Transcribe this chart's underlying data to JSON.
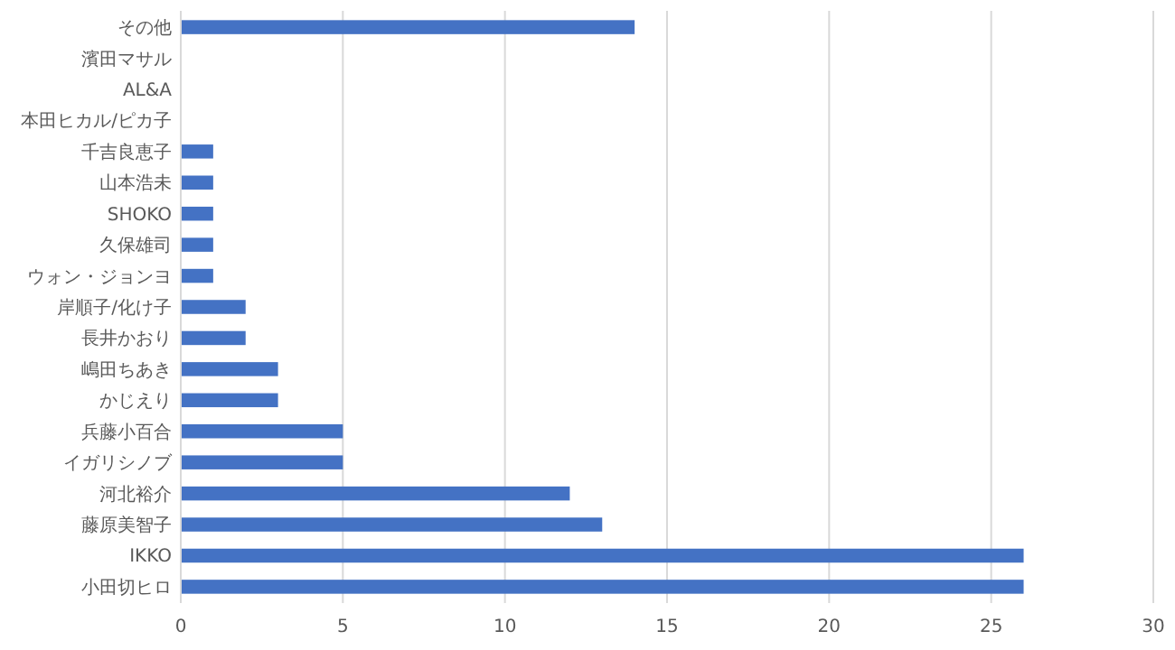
{
  "chart_data": {
    "type": "bar",
    "orientation": "horizontal",
    "categories": [
      "その他",
      "濱田マサル",
      "AL&A",
      "本田ヒカル/ピカ子",
      "千吉良恵子",
      "山本浩未",
      "SHOKO",
      "久保雄司",
      "ウォン・ジョンヨ",
      "岸順子/化け子",
      "長井かおり",
      "嶋田ちあき",
      "かじえり",
      "兵藤小百合",
      "イガリシノブ",
      "河北裕介",
      "藤原美智子",
      "IKKO",
      "小田切ヒロ"
    ],
    "values": [
      14,
      0,
      0,
      0,
      1,
      1,
      1,
      1,
      1,
      2,
      2,
      3,
      3,
      5,
      5,
      12,
      13,
      26,
      26
    ],
    "color": "#4472c4",
    "xlim": [
      0,
      30
    ],
    "xticks": [
      0,
      5,
      10,
      15,
      20,
      25,
      30
    ],
    "grid": "x"
  }
}
